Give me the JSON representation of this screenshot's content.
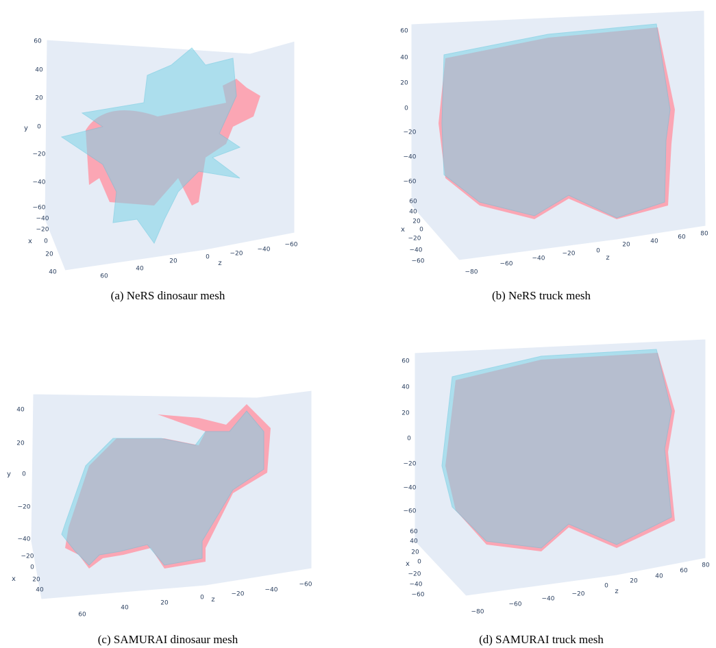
{
  "panels": [
    {
      "caption": "(a) NeRS dinosaur mesh",
      "y_label": "y",
      "y_ticks": [
        "60",
        "40",
        "20",
        "0",
        "−20",
        "−40",
        "−60"
      ],
      "x_label": "x",
      "x_ticks": [
        "−40",
        "−20",
        "0",
        "20",
        "40"
      ],
      "z_label": "z",
      "z_ticks": [
        "60",
        "40",
        "20",
        "0",
        "−20",
        "−40",
        "−60"
      ]
    },
    {
      "caption": "(b) NeRS truck mesh",
      "y_label": "y",
      "y_ticks": [
        "60",
        "40",
        "20",
        "0",
        "−20",
        "−40",
        "−60"
      ],
      "x_label": "x",
      "x_ticks": [
        "60",
        "40",
        "20",
        "0",
        "−20",
        "−40",
        "−60"
      ],
      "z_label": "z",
      "z_ticks": [
        "−80",
        "−60",
        "−40",
        "−20",
        "0",
        "20",
        "40",
        "60",
        "80"
      ]
    },
    {
      "caption": "(c) SAMURAI dinosaur mesh",
      "y_label": "y",
      "y_ticks": [
        "40",
        "20",
        "0",
        "−20",
        "−40"
      ],
      "x_label": "x",
      "x_ticks": [
        "−20",
        "0",
        "20",
        "40"
      ],
      "z_label": "z",
      "z_ticks": [
        "60",
        "40",
        "20",
        "0",
        "−20",
        "−40",
        "−60"
      ]
    },
    {
      "caption": "(d) SAMURAI truck mesh",
      "y_label": "y",
      "y_ticks": [
        "60",
        "40",
        "20",
        "0",
        "−20",
        "−40",
        "−60"
      ],
      "x_label": "x",
      "x_ticks": [
        "60",
        "40",
        "20",
        "0",
        "−20",
        "−40",
        "−60"
      ],
      "z_label": "z",
      "z_ticks": [
        "−80",
        "−60",
        "−40",
        "−20",
        "0",
        "20",
        "40",
        "60",
        "80"
      ]
    }
  ]
}
